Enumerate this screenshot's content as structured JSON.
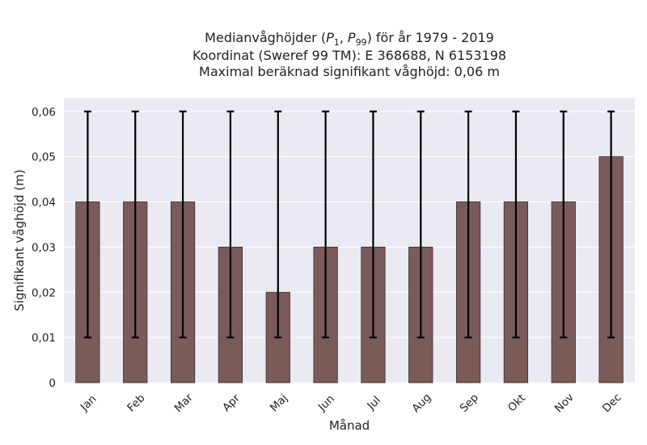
{
  "chart_data": {
    "type": "bar",
    "title": [
      "Medianvåghöjder (P1, P99) för år 1979 - 2019",
      "Koordinat (Sweref 99 TM): E 368688, N 6153198",
      "Maximal beräknad signifikant våghöjd: 0,06 m"
    ],
    "xlabel": "Månad",
    "ylabel": "Signifikant våghöjd (m)",
    "categories": [
      "Jan",
      "Feb",
      "Mar",
      "Apr",
      "Maj",
      "Jun",
      "Jul",
      "Aug",
      "Sep",
      "Okt",
      "Nov",
      "Dec"
    ],
    "values": [
      0.04,
      0.04,
      0.04,
      0.03,
      0.02,
      0.03,
      0.03,
      0.03,
      0.04,
      0.04,
      0.04,
      0.05
    ],
    "error_low": [
      0.01,
      0.01,
      0.01,
      0.01,
      0.01,
      0.01,
      0.01,
      0.01,
      0.01,
      0.01,
      0.01,
      0.01
    ],
    "error_high": [
      0.06,
      0.06,
      0.06,
      0.06,
      0.06,
      0.06,
      0.06,
      0.06,
      0.06,
      0.06,
      0.06,
      0.06
    ],
    "yticks": [
      0,
      0.01,
      0.02,
      0.03,
      0.04,
      0.05,
      0.06
    ],
    "ytick_labels": [
      "0",
      "0,01",
      "0,02",
      "0,03",
      "0,04",
      "0,05",
      "0,06"
    ],
    "ylim": [
      0,
      0.063
    ],
    "grid": true,
    "colors": {
      "bar": "#7b5a5a",
      "bar_edge": "#3d2b2b",
      "error": "#000000",
      "plot_bg": "#eaeaf2",
      "grid": "#ffffff"
    }
  }
}
